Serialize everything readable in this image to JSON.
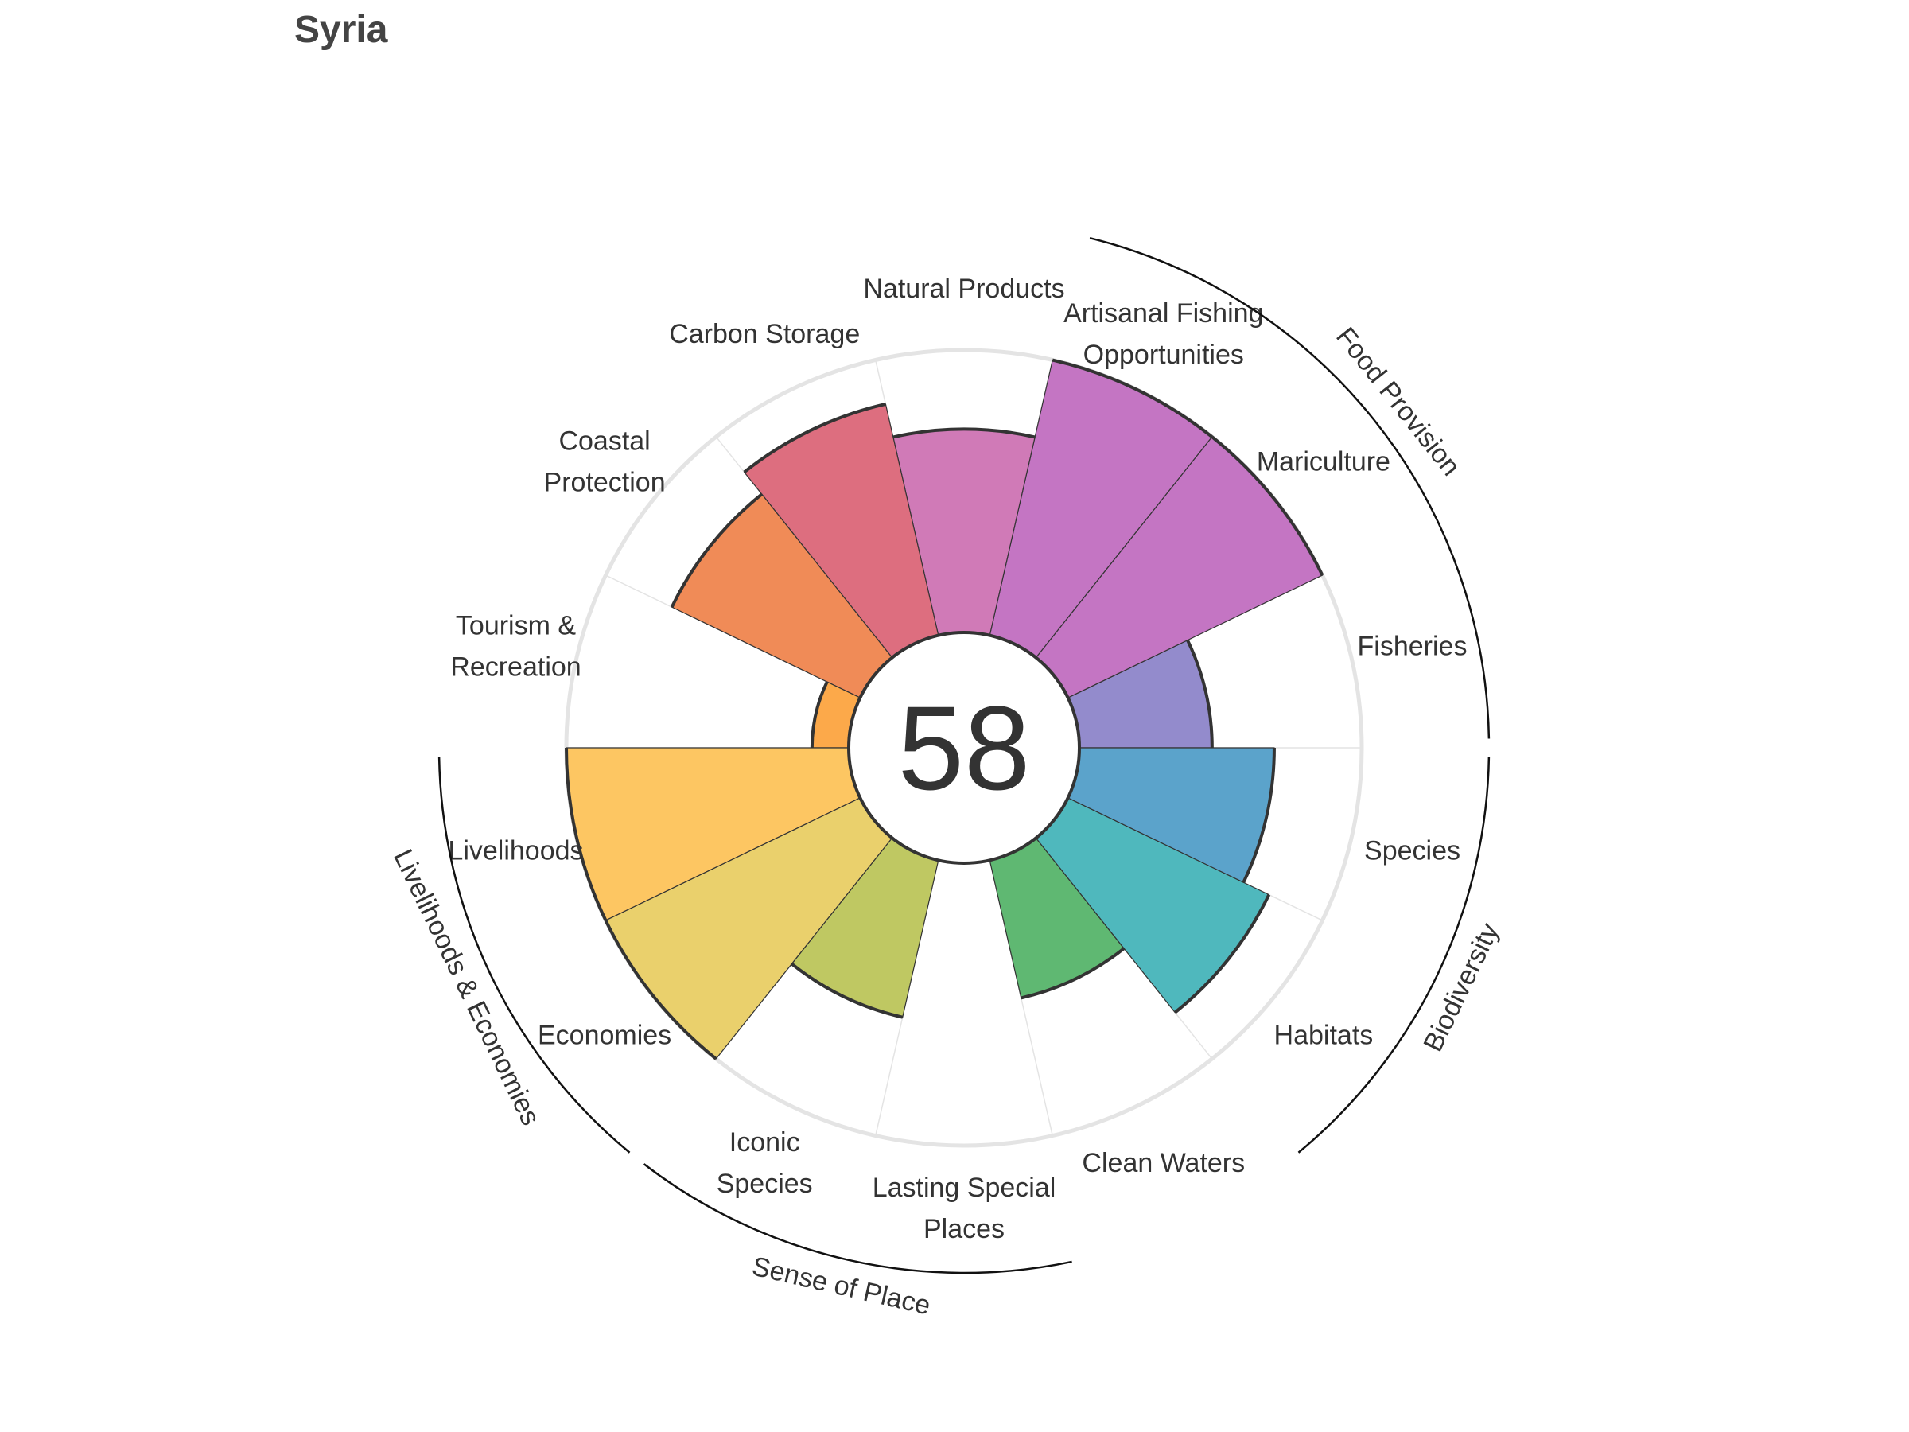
{
  "title": "Syria",
  "chart_data": {
    "type": "rose",
    "overall_score": "58",
    "max_value": 100,
    "categories": [
      {
        "label": [
          "Fisheries"
        ],
        "value": 47,
        "color": "#938bcc"
      },
      {
        "label": [
          "Mariculture"
        ],
        "value": 100,
        "color": "#c475c3"
      },
      {
        "label": [
          "Artisanal Fishing",
          "Opportunities"
        ],
        "value": 100,
        "color": "#c475c3"
      },
      {
        "label": [
          "Natural Products"
        ],
        "value": 72,
        "color": "#d07ab7"
      },
      {
        "label": [
          "Carbon Storage"
        ],
        "value": 84,
        "color": "#dd6e7f"
      },
      {
        "label": [
          "Coastal",
          "Protection"
        ],
        "value": 74,
        "color": "#f08b57"
      },
      {
        "label": [
          "Tourism &",
          "Recreation"
        ],
        "value": 13,
        "color": "#fca94a"
      },
      {
        "label": [
          "Livelihoods"
        ],
        "value": 100,
        "color": "#fdc662"
      },
      {
        "label": [
          "Economies"
        ],
        "value": 100,
        "color": "#ead06c"
      },
      {
        "label": [
          "Iconic",
          "Species"
        ],
        "value": 57,
        "color": "#bfc862"
      },
      {
        "label": [
          "Lasting Special",
          "Places"
        ],
        "value": 0,
        "color": "#9cc461"
      },
      {
        "label": [
          "Clean Waters"
        ],
        "value": 50,
        "color": "#5fb872"
      },
      {
        "label": [
          "Habitats"
        ],
        "value": 79,
        "color": "#4fb8bd"
      },
      {
        "label": [
          "Species"
        ],
        "value": 69,
        "color": "#5ba3cb"
      }
    ],
    "groups": [
      {
        "name": "Food Provision",
        "start": 0,
        "end": 3
      },
      {
        "name": "Biodiversity",
        "start": 12,
        "end": 14
      },
      {
        "name": "Sense of Place",
        "start": 9,
        "end": 11
      },
      {
        "name": "Livelihoods & Economies",
        "start": 7,
        "end": 9
      }
    ]
  }
}
